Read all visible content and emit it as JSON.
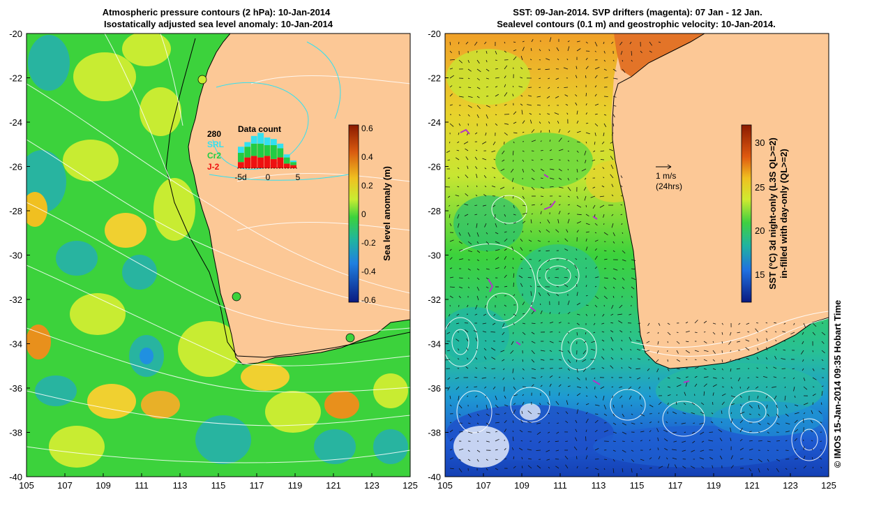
{
  "left_panel": {
    "title_line1": "Atmospheric pressure contours (2 hPa): 10-Jan-2014",
    "title_line2": "Isostatically adjusted sea level anomaly: 10-Jan-2014",
    "inset": {
      "count": "280",
      "title": "Data count",
      "legend": [
        {
          "label": "SRL",
          "color": "#33e0f0"
        },
        {
          "label": "Cr2",
          "color": "#22cc44"
        },
        {
          "label": "J-2",
          "color": "#ee1111"
        }
      ],
      "x_ticks": [
        "-5d",
        "0",
        "5"
      ],
      "bars": [
        {
          "j2": 4,
          "cr2": 6,
          "srl": 4
        },
        {
          "j2": 7,
          "cr2": 7,
          "srl": 3
        },
        {
          "j2": 8,
          "cr2": 8,
          "srl": 5
        },
        {
          "j2": 7,
          "cr2": 9,
          "srl": 7
        },
        {
          "j2": 8,
          "cr2": 7,
          "srl": 5
        },
        {
          "j2": 6,
          "cr2": 9,
          "srl": 4
        },
        {
          "j2": 7,
          "cr2": 6,
          "srl": 3
        },
        {
          "j2": 3,
          "cr2": 4,
          "srl": 2
        },
        {
          "j2": 2,
          "cr2": 2,
          "srl": 1
        }
      ]
    },
    "colorbar": {
      "label": "Sea level anomaly (m)",
      "ticks": [
        "0.6",
        "0.4",
        "0.2",
        "0",
        "-0.2",
        "-0.4",
        "-0.6"
      ]
    }
  },
  "right_panel": {
    "title_line1": "SST: 09-Jan-2014. SVP drifters (magenta): 07 Jan - 12 Jan.",
    "title_line2": "Sealevel contours (0.1 m) and geostrophic velocity: 10-Jan-2014.",
    "scale_arrow_label1": "1 m/s",
    "scale_arrow_label2": "(24hrs)",
    "colorbar": {
      "label1": "SST (°C) 3d night-only (L3S QL>=2)",
      "label2": "in-filled with day-only (QL>=2)",
      "ticks": [
        "30",
        "25",
        "20",
        "15"
      ]
    }
  },
  "axes": {
    "y_ticks": [
      "-20",
      "-22",
      "-24",
      "-26",
      "-28",
      "-30",
      "-32",
      "-34",
      "-36",
      "-38",
      "-40"
    ],
    "x_ticks": [
      "105",
      "107",
      "109",
      "111",
      "113",
      "115",
      "117",
      "119",
      "121",
      "123",
      "125"
    ]
  },
  "credit": "© IMOS 15-Jan-2014 09:35 Hobart Time",
  "colors": {
    "land": "#fcc896",
    "ocean_green": "#3cd23c",
    "ocean_yellow": "#c8ec32",
    "ocean_cyan": "#28b4a0",
    "sst_blue": "#1e64d2",
    "sst_orange": "#f0a028",
    "drifter_magenta": "#b432c8"
  }
}
